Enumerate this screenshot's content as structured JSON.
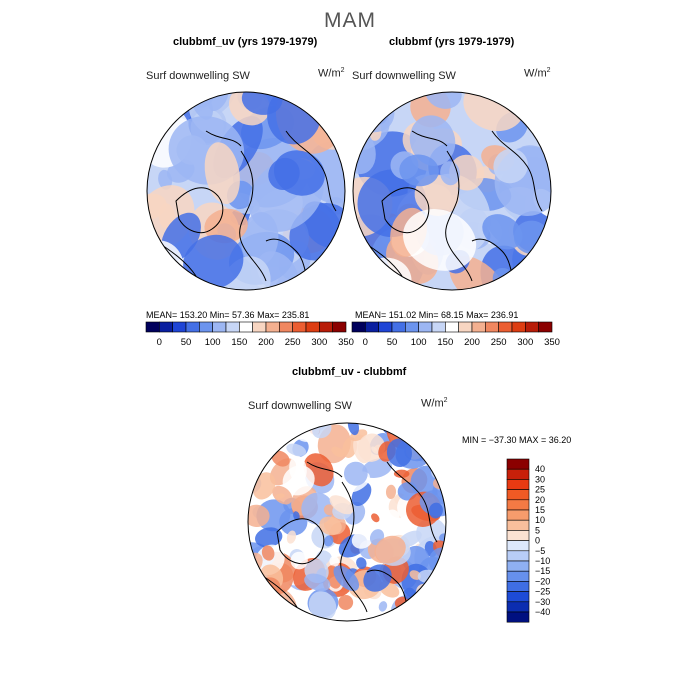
{
  "season": "MAM",
  "panels": [
    {
      "title": "clubbmf_uv (yrs 1979-1979)",
      "field": "Surf downwelling SW",
      "units_base": "W/m",
      "units_exp": "2",
      "stats": "MEAN= 153.20   Min=   57.36   Max= 235.81"
    },
    {
      "title": "clubbmf (yrs 1979-1979)",
      "field": "Surf downwelling SW",
      "units_base": "W/m",
      "units_exp": "2",
      "stats": "MEAN= 151.02   Min=   68.15   Max= 236.91"
    }
  ],
  "abs_colorbar": {
    "colors": [
      "#00005c",
      "#0a1fa0",
      "#1f45d6",
      "#4470e6",
      "#6c94ee",
      "#9cb6f3",
      "#c7d6f6",
      "#ffffff",
      "#f8d6c2",
      "#f4b090",
      "#f08760",
      "#ec5e32",
      "#dd3d12",
      "#b81c08",
      "#8b0000"
    ],
    "labels": [
      "0",
      "50",
      "100",
      "150",
      "200",
      "250",
      "300",
      "350"
    ]
  },
  "diff_panel": {
    "title": "clubbmf_uv - clubbmf",
    "field": "Surf downwelling SW",
    "units_base": "W/m",
    "units_exp": "2",
    "stats": "MIN = −37.30  MAX =   36.20"
  },
  "diff_colorbar": {
    "colors": [
      "#8b0000",
      "#c8200a",
      "#e83a12",
      "#f05a24",
      "#f47a44",
      "#f79c6c",
      "#f9bf9c",
      "#fbe2d2",
      "#dde8fb",
      "#b8cdf7",
      "#8fb0f2",
      "#6690ec",
      "#3f6ee4",
      "#1d4bd6",
      "#0b2db0",
      "#001080"
    ],
    "labels": [
      "40",
      "30",
      "25",
      "20",
      "15",
      "10",
      "5",
      "0",
      "−5",
      "−10",
      "−15",
      "−20",
      "−25",
      "−30",
      "−40"
    ]
  }
}
